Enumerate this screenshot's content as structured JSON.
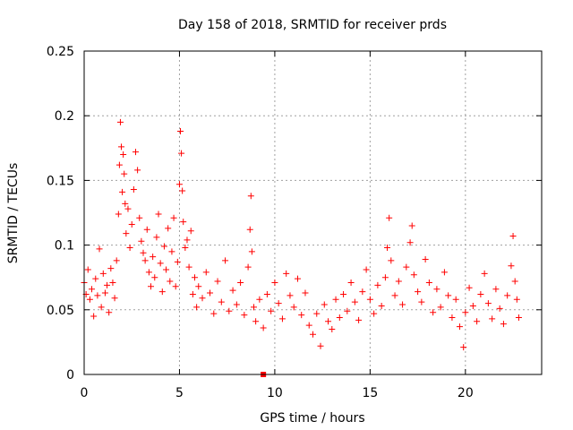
{
  "chart_data": {
    "type": "scatter",
    "title": "Day 158 of 2018, SRMTID for receiver prds",
    "xlabel": "GPS time / hours",
    "ylabel": "SRMTID / TECUs",
    "xlim": [
      0,
      24
    ],
    "ylim": [
      0,
      0.25
    ],
    "xticks": [
      0,
      5,
      10,
      15,
      20
    ],
    "xtick_labels": [
      "0",
      "5",
      "10",
      "15",
      "20"
    ],
    "yticks": [
      0,
      0.05,
      0.1,
      0.15,
      0.2,
      0.25
    ],
    "ytick_labels": [
      "0",
      "0.05",
      "0.1",
      "0.15",
      "0.2",
      "0.25"
    ],
    "grid": true,
    "marker": "plus",
    "color": "#ff0000",
    "series": [
      {
        "name": "SRMTID",
        "points": [
          [
            0.0,
            0.071
          ],
          [
            0.1,
            0.062
          ],
          [
            0.2,
            0.081
          ],
          [
            0.3,
            0.058
          ],
          [
            0.4,
            0.066
          ],
          [
            0.5,
            0.045
          ],
          [
            0.6,
            0.074
          ],
          [
            0.7,
            0.061
          ],
          [
            0.8,
            0.097
          ],
          [
            0.9,
            0.052
          ],
          [
            1.0,
            0.078
          ],
          [
            1.1,
            0.063
          ],
          [
            1.2,
            0.069
          ],
          [
            1.3,
            0.048
          ],
          [
            1.4,
            0.082
          ],
          [
            1.5,
            0.071
          ],
          [
            1.6,
            0.059
          ],
          [
            1.7,
            0.088
          ],
          [
            1.8,
            0.124
          ],
          [
            1.85,
            0.162
          ],
          [
            1.9,
            0.195
          ],
          [
            1.95,
            0.176
          ],
          [
            2.0,
            0.141
          ],
          [
            2.05,
            0.17
          ],
          [
            2.1,
            0.155
          ],
          [
            2.15,
            0.132
          ],
          [
            2.2,
            0.109
          ],
          [
            2.3,
            0.128
          ],
          [
            2.4,
            0.098
          ],
          [
            2.5,
            0.116
          ],
          [
            2.6,
            0.143
          ],
          [
            2.7,
            0.172
          ],
          [
            2.8,
            0.158
          ],
          [
            2.9,
            0.121
          ],
          [
            3.0,
            0.103
          ],
          [
            3.1,
            0.094
          ],
          [
            3.2,
            0.088
          ],
          [
            3.3,
            0.112
          ],
          [
            3.4,
            0.079
          ],
          [
            3.5,
            0.068
          ],
          [
            3.6,
            0.091
          ],
          [
            3.7,
            0.075
          ],
          [
            3.8,
            0.106
          ],
          [
            3.9,
            0.124
          ],
          [
            4.0,
            0.086
          ],
          [
            4.1,
            0.064
          ],
          [
            4.2,
            0.099
          ],
          [
            4.3,
            0.081
          ],
          [
            4.4,
            0.113
          ],
          [
            4.5,
            0.072
          ],
          [
            4.6,
            0.095
          ],
          [
            4.7,
            0.121
          ],
          [
            4.8,
            0.068
          ],
          [
            4.9,
            0.087
          ],
          [
            5.0,
            0.147
          ],
          [
            5.05,
            0.188
          ],
          [
            5.1,
            0.171
          ],
          [
            5.15,
            0.142
          ],
          [
            5.2,
            0.118
          ],
          [
            5.3,
            0.098
          ],
          [
            5.4,
            0.104
          ],
          [
            5.5,
            0.083
          ],
          [
            5.6,
            0.111
          ],
          [
            5.7,
            0.062
          ],
          [
            5.8,
            0.075
          ],
          [
            5.9,
            0.052
          ],
          [
            6.0,
            0.068
          ],
          [
            6.2,
            0.059
          ],
          [
            6.4,
            0.079
          ],
          [
            6.6,
            0.063
          ],
          [
            6.8,
            0.047
          ],
          [
            7.0,
            0.072
          ],
          [
            7.2,
            0.056
          ],
          [
            7.4,
            0.088
          ],
          [
            7.6,
            0.049
          ],
          [
            7.8,
            0.065
          ],
          [
            8.0,
            0.054
          ],
          [
            8.2,
            0.071
          ],
          [
            8.4,
            0.046
          ],
          [
            8.6,
            0.083
          ],
          [
            8.7,
            0.112
          ],
          [
            8.75,
            0.138
          ],
          [
            8.8,
            0.095
          ],
          [
            8.9,
            0.052
          ],
          [
            9.0,
            0.041
          ],
          [
            9.2,
            0.058
          ],
          [
            9.4,
            0.036
          ],
          [
            9.6,
            0.062
          ],
          [
            9.8,
            0.049
          ],
          [
            10.0,
            0.071
          ],
          [
            10.2,
            0.055
          ],
          [
            10.4,
            0.043
          ],
          [
            10.6,
            0.078
          ],
          [
            10.8,
            0.061
          ],
          [
            11.0,
            0.052
          ],
          [
            11.2,
            0.074
          ],
          [
            11.4,
            0.046
          ],
          [
            11.6,
            0.063
          ],
          [
            11.8,
            0.038
          ],
          [
            12.0,
            0.031
          ],
          [
            12.2,
            0.047
          ],
          [
            12.4,
            0.022
          ],
          [
            12.6,
            0.054
          ],
          [
            12.8,
            0.041
          ],
          [
            13.0,
            0.035
          ],
          [
            13.2,
            0.058
          ],
          [
            13.4,
            0.044
          ],
          [
            13.6,
            0.062
          ],
          [
            13.8,
            0.049
          ],
          [
            14.0,
            0.071
          ],
          [
            14.2,
            0.056
          ],
          [
            14.4,
            0.042
          ],
          [
            14.6,
            0.064
          ],
          [
            14.8,
            0.081
          ],
          [
            15.0,
            0.058
          ],
          [
            15.2,
            0.047
          ],
          [
            15.4,
            0.069
          ],
          [
            15.6,
            0.053
          ],
          [
            15.8,
            0.075
          ],
          [
            15.9,
            0.098
          ],
          [
            16.0,
            0.121
          ],
          [
            16.1,
            0.088
          ],
          [
            16.3,
            0.061
          ],
          [
            16.5,
            0.072
          ],
          [
            16.7,
            0.054
          ],
          [
            16.9,
            0.083
          ],
          [
            17.1,
            0.102
          ],
          [
            17.2,
            0.115
          ],
          [
            17.3,
            0.077
          ],
          [
            17.5,
            0.064
          ],
          [
            17.7,
            0.056
          ],
          [
            17.9,
            0.089
          ],
          [
            18.1,
            0.071
          ],
          [
            18.3,
            0.048
          ],
          [
            18.5,
            0.066
          ],
          [
            18.7,
            0.052
          ],
          [
            18.9,
            0.079
          ],
          [
            19.1,
            0.061
          ],
          [
            19.3,
            0.044
          ],
          [
            19.5,
            0.058
          ],
          [
            19.7,
            0.037
          ],
          [
            19.9,
            0.021
          ],
          [
            20.0,
            0.048
          ],
          [
            20.2,
            0.067
          ],
          [
            20.4,
            0.053
          ],
          [
            20.6,
            0.041
          ],
          [
            20.8,
            0.062
          ],
          [
            21.0,
            0.078
          ],
          [
            21.2,
            0.055
          ],
          [
            21.4,
            0.043
          ],
          [
            21.6,
            0.066
          ],
          [
            21.8,
            0.051
          ],
          [
            22.0,
            0.039
          ],
          [
            22.2,
            0.061
          ],
          [
            22.4,
            0.084
          ],
          [
            22.5,
            0.107
          ],
          [
            22.6,
            0.072
          ],
          [
            22.7,
            0.058
          ],
          [
            22.8,
            0.044
          ]
        ]
      }
    ],
    "outlier_marker": {
      "x": 9.4,
      "y": 0.0
    }
  }
}
